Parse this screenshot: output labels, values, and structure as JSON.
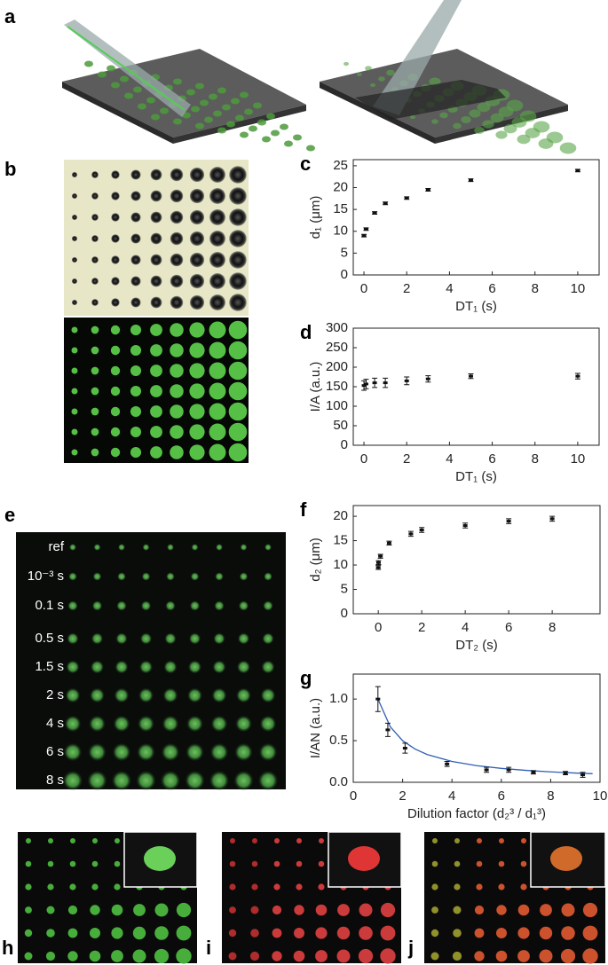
{
  "panel_labels": [
    "a",
    "b",
    "e",
    "h",
    "i",
    "j"
  ],
  "panel_e": {
    "rows": [
      "ref",
      "10⁻³ s",
      "0.1 s",
      "0.5 s",
      "1.5 s",
      "2 s",
      "4 s",
      "6 s",
      "8 s"
    ]
  },
  "chart_data": [
    {
      "type": "scatter",
      "panel": "c",
      "x_label": "DT₁ (s)",
      "y_label": "d₁ (μm)",
      "x": [
        0.001,
        0.1,
        0.5,
        1,
        2,
        3,
        5,
        10
      ],
      "values": [
        9,
        10.5,
        14.2,
        16.4,
        17.6,
        19.5,
        21.7,
        23.9
      ],
      "errors": [
        0.3,
        0.3,
        0.3,
        0.3,
        0.3,
        0.3,
        0.3,
        0.3
      ],
      "color": "#111",
      "xlim": [
        -0.5,
        11
      ],
      "ylim": [
        0,
        26.4
      ],
      "xticks": [
        0,
        2,
        4,
        6,
        8,
        10
      ],
      "yticks": [
        0,
        5,
        10,
        15,
        20,
        25
      ]
    },
    {
      "type": "scatter",
      "panel": "d",
      "x_label": "DT₁ (s)",
      "y_label": "I/A (a.u.)",
      "x": [
        0.001,
        0.1,
        0.5,
        1,
        2,
        3,
        5,
        10
      ],
      "values": [
        153,
        157,
        160,
        160,
        165,
        170,
        177,
        177
      ],
      "errors": [
        12,
        12,
        12,
        12,
        10,
        8,
        6,
        7
      ],
      "color": "#111",
      "xlim": [
        -0.5,
        11
      ],
      "ylim": [
        0,
        300
      ],
      "xticks": [
        0,
        2,
        4,
        6,
        8,
        10
      ],
      "yticks": [
        0,
        50,
        100,
        150,
        200,
        250,
        300
      ]
    },
    {
      "type": "scatter",
      "panel": "f",
      "x_label": "DT₂ (s)",
      "y_label": "d₂ (μm)",
      "x": [
        0.001,
        0.01,
        0.1,
        0.5,
        1.5,
        2,
        4,
        6,
        8
      ],
      "values": [
        9.5,
        10.5,
        11.8,
        14.5,
        16.4,
        17.2,
        18.1,
        19.0,
        19.5
      ],
      "errors": [
        0.4,
        0.4,
        0.4,
        0.4,
        0.5,
        0.5,
        0.5,
        0.5,
        0.5
      ],
      "color": "#111",
      "xlim": [
        -1.15,
        10.2
      ],
      "ylim": [
        0,
        22.2
      ],
      "xticks": [
        0,
        2,
        4,
        6,
        8
      ],
      "yticks": [
        0,
        5,
        10,
        15,
        20
      ]
    },
    {
      "type": "scatter",
      "panel": "g",
      "x_label": "Dilution factor (d₂³ / d₁³)",
      "y_label": "I/AN (a.u.)",
      "x": [
        1,
        1.4,
        2.1,
        3.8,
        5.4,
        6.3,
        7.3,
        8.6,
        9.3
      ],
      "values": [
        1.0,
        0.63,
        0.41,
        0.22,
        0.15,
        0.15,
        0.12,
        0.11,
        0.09
      ],
      "errors": [
        0.15,
        0.08,
        0.06,
        0.03,
        0.03,
        0.03,
        0.02,
        0.02,
        0.03
      ],
      "color": "#111",
      "fit_x": [
        1,
        1.5,
        2,
        2.5,
        3,
        4,
        5,
        6,
        7,
        8,
        9,
        9.7
      ],
      "fit_values": [
        1.0,
        0.667,
        0.5,
        0.4,
        0.333,
        0.25,
        0.2,
        0.167,
        0.143,
        0.125,
        0.111,
        0.103
      ],
      "fit_color": "#2f5fb5",
      "xlim": [
        0,
        10
      ],
      "ylim": [
        0,
        1.3
      ],
      "xticks": [
        0,
        2,
        4,
        6,
        8,
        10
      ],
      "yticks": [
        {
          "value": 0,
          "label": "0.0"
        },
        {
          "value": 0.5,
          "label": "0.5"
        },
        {
          "value": 1,
          "label": "1.0"
        }
      ]
    }
  ]
}
